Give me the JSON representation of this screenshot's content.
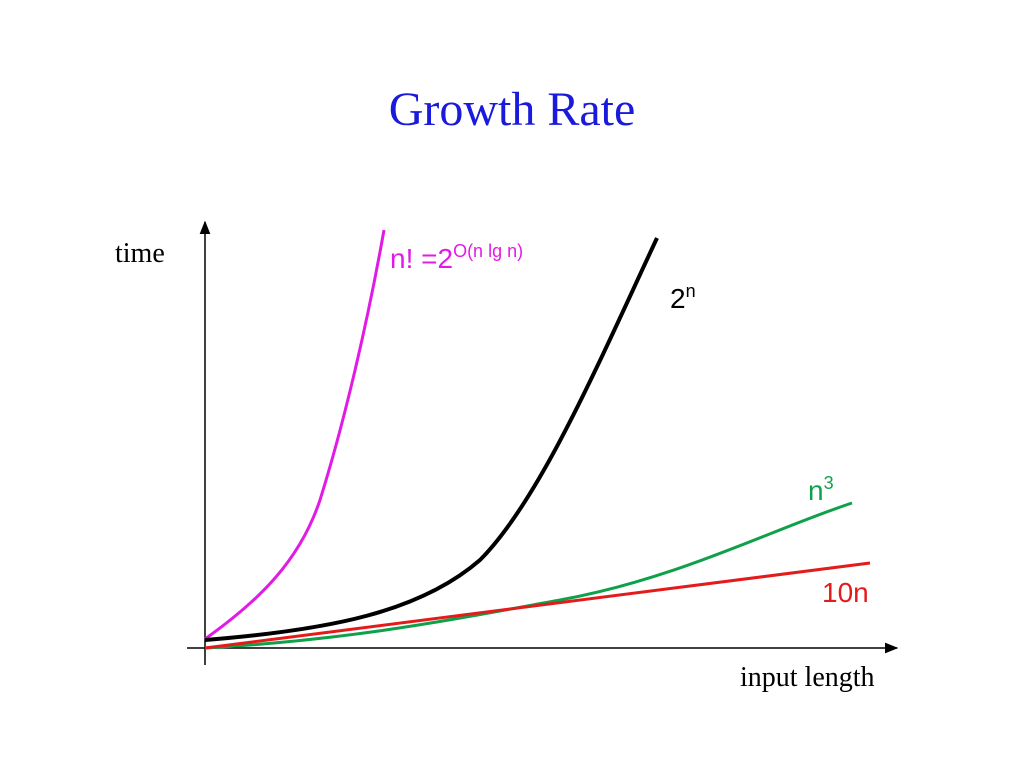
{
  "chart_data": {
    "type": "line",
    "title": "Growth Rate",
    "xlabel": "input length",
    "ylabel": "time",
    "grid": false,
    "series": [
      {
        "name": "n! =2",
        "superscript": "O(n lg n)",
        "color": "#e21ae6"
      },
      {
        "name": "2",
        "superscript": "n",
        "color": "#000000"
      },
      {
        "name": "n",
        "superscript": "3",
        "color": "#0fa14a"
      },
      {
        "name": "10n",
        "superscript": "",
        "color": "#e41b1b"
      }
    ]
  }
}
